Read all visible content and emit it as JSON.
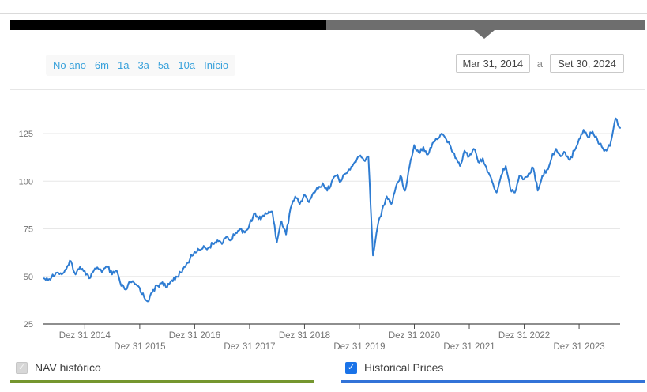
{
  "navigator": {
    "selected_range_color": "#000000",
    "track_color": "#6e6e6e",
    "handle_icon": "down-triangle"
  },
  "toolbar": {
    "ranges": [
      "No ano",
      "6m",
      "1a",
      "3a",
      "5a",
      "10a",
      "Início"
    ],
    "link_color": "#38a1db",
    "date_from": "Mar 31, 2014",
    "date_separator": "a",
    "date_to": "Set 30, 2024"
  },
  "chart_data": {
    "type": "line",
    "title": "",
    "grid": "horizontal",
    "legend_position": "bottom",
    "t_range": [
      2014.247,
      2024.747
    ],
    "ylim": [
      25,
      135
    ],
    "yticks": [
      25,
      50,
      75,
      100,
      125
    ],
    "xticks": [
      {
        "label": "Dez 31 2014",
        "t": 2015.0,
        "row": 1
      },
      {
        "label": "Dez 31 2015",
        "t": 2016.0,
        "row": 2
      },
      {
        "label": "Dez 31 2016",
        "t": 2017.0,
        "row": 1
      },
      {
        "label": "Dez 31 2017",
        "t": 2018.0,
        "row": 2
      },
      {
        "label": "Dez 31 2018",
        "t": 2019.0,
        "row": 1
      },
      {
        "label": "Dez 31 2019",
        "t": 2020.0,
        "row": 2
      },
      {
        "label": "Dez 31 2020",
        "t": 2021.0,
        "row": 1
      },
      {
        "label": "Dez 31 2021",
        "t": 2022.0,
        "row": 2
      },
      {
        "label": "Dez 31 2022",
        "t": 2023.0,
        "row": 1
      },
      {
        "label": "Dez 31 2023",
        "t": 2024.0,
        "row": 2
      }
    ],
    "series": [
      {
        "name": "Historical Prices",
        "color": "#2E7CD2",
        "months": [
          "2014-03",
          "2014-04",
          "2014-05",
          "2014-06",
          "2014-07",
          "2014-08",
          "2014-09",
          "2014-10",
          "2014-11",
          "2014-12",
          "2015-01",
          "2015-02",
          "2015-03",
          "2015-04",
          "2015-05",
          "2015-06",
          "2015-07",
          "2015-08",
          "2015-09",
          "2015-10",
          "2015-11",
          "2015-12",
          "2016-01",
          "2016-02",
          "2016-03",
          "2016-04",
          "2016-05",
          "2016-06",
          "2016-07",
          "2016-08",
          "2016-09",
          "2016-10",
          "2016-11",
          "2016-12",
          "2017-01",
          "2017-02",
          "2017-03",
          "2017-04",
          "2017-05",
          "2017-06",
          "2017-07",
          "2017-08",
          "2017-09",
          "2017-10",
          "2017-11",
          "2017-12",
          "2018-01",
          "2018-02",
          "2018-03",
          "2018-04",
          "2018-05",
          "2018-06",
          "2018-07",
          "2018-08",
          "2018-09",
          "2018-10",
          "2018-11",
          "2018-12",
          "2019-01",
          "2019-02",
          "2019-03",
          "2019-04",
          "2019-05",
          "2019-06",
          "2019-07",
          "2019-08",
          "2019-09",
          "2019-10",
          "2019-11",
          "2019-12",
          "2020-01",
          "2020-02",
          "2020-03",
          "2020-04",
          "2020-05",
          "2020-06",
          "2020-07",
          "2020-08",
          "2020-09",
          "2020-10",
          "2020-11",
          "2020-12",
          "2021-01",
          "2021-02",
          "2021-03",
          "2021-04",
          "2021-05",
          "2021-06",
          "2021-07",
          "2021-08",
          "2021-09",
          "2021-10",
          "2021-11",
          "2021-12",
          "2022-01",
          "2022-02",
          "2022-03",
          "2022-04",
          "2022-05",
          "2022-06",
          "2022-07",
          "2022-08",
          "2022-09",
          "2022-10",
          "2022-11",
          "2022-12",
          "2023-01",
          "2023-02",
          "2023-03",
          "2023-04",
          "2023-05",
          "2023-06",
          "2023-07",
          "2023-08",
          "2023-09",
          "2023-10",
          "2023-11",
          "2023-12",
          "2024-01",
          "2024-02",
          "2024-03",
          "2024-04",
          "2024-05",
          "2024-06",
          "2024-07",
          "2024-08",
          "2024-09"
        ],
        "values": [
          49,
          48,
          51,
          52,
          51,
          54,
          58,
          51,
          55,
          53,
          49,
          53,
          54,
          53,
          55,
          51,
          53,
          45,
          43,
          47,
          46,
          44,
          39,
          37,
          43,
          45,
          47,
          44,
          48,
          50,
          52,
          55,
          59,
          63,
          64,
          66,
          65,
          67,
          69,
          67,
          71,
          69,
          73,
          75,
          73,
          77,
          83,
          80,
          82,
          83,
          84,
          68,
          79,
          72,
          86,
          92,
          88,
          93,
          89,
          94,
          96,
          99,
          95,
          100,
          103,
          100,
          104,
          106,
          110,
          113,
          111,
          113,
          61,
          76,
          85,
          92,
          88,
          97,
          103,
          95,
          108,
          119,
          115,
          118,
          114,
          120,
          122,
          125,
          122,
          118,
          112,
          108,
          116,
          113,
          117,
          110,
          112,
          105,
          100,
          94,
          103,
          108,
          96,
          94,
          103,
          101,
          104,
          107,
          95,
          103,
          106,
          112,
          117,
          113,
          115,
          111,
          116,
          122,
          127,
          123,
          126,
          122,
          118,
          116,
          121,
          133,
          128
        ]
      }
    ]
  },
  "legend": {
    "nav": {
      "label": "NAV histórico",
      "checked": true,
      "disabled": true,
      "underline_color": "#75962f"
    },
    "prices": {
      "label": "Historical Prices",
      "checked": true,
      "disabled": false,
      "underline_color": "#3273d8",
      "checkbox_color": "#1a73e8"
    }
  }
}
